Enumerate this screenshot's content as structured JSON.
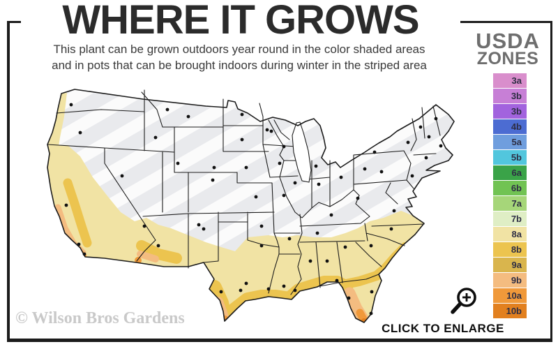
{
  "title": "WHERE IT GROWS",
  "subtitle": {
    "line1": "This plant can be grown outdoors year round in the color shaded areas",
    "line2": "and in pots that can be brought indoors during winter in the striped area"
  },
  "legend": {
    "title_line1": "USDA",
    "title_line2": "ZONES",
    "zones": [
      {
        "label": "3a",
        "color": "#d98ecc"
      },
      {
        "label": "3b",
        "color": "#c77fd6"
      },
      {
        "label": "3b",
        "color": "#a263de"
      },
      {
        "label": "4b",
        "color": "#4c6cd2"
      },
      {
        "label": "5a",
        "color": "#6f9ede"
      },
      {
        "label": "5b",
        "color": "#52c6dd"
      },
      {
        "label": "6a",
        "color": "#3aa348"
      },
      {
        "label": "6b",
        "color": "#71c353"
      },
      {
        "label": "7a",
        "color": "#a6d679"
      },
      {
        "label": "7b",
        "color": "#dfeec5"
      },
      {
        "label": "8a",
        "color": "#f1e3a4"
      },
      {
        "label": "8b",
        "color": "#ecc44f"
      },
      {
        "label": "9a",
        "color": "#d9b54d"
      },
      {
        "label": "9b",
        "color": "#f4bc80"
      },
      {
        "label": "10a",
        "color": "#f0993a"
      },
      {
        "label": "10b",
        "color": "#e2801f"
      }
    ]
  },
  "map": {
    "base_color": "#e9eaed",
    "stripe_color": "#ffffff",
    "outline_color": "#1b1b1b",
    "shaded_zones": [
      "8a",
      "8b",
      "9a",
      "9b",
      "10a",
      "10b"
    ]
  },
  "watermark": "© Wilson Bros Gardens",
  "enlarge": {
    "label": "CLICK TO ENLARGE"
  }
}
